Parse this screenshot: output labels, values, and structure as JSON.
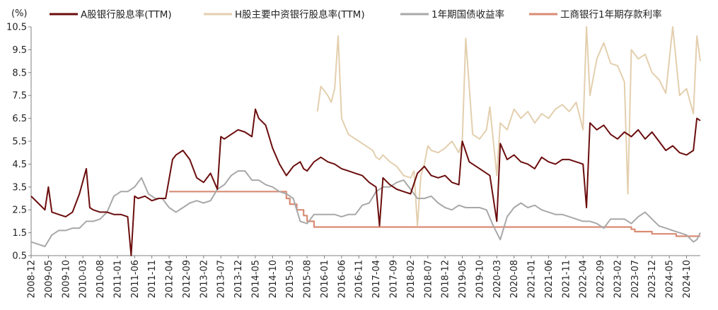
{
  "chart_data": {
    "type": "line",
    "ylabel": "(%)",
    "ylim": [
      0.5,
      10.5
    ],
    "yticks": [
      "0.5",
      "1.5",
      "2.5",
      "3.5",
      "4.5",
      "5.5",
      "6.5",
      "7.5",
      "8.5",
      "9.5",
      "10.5"
    ],
    "xticks": [
      "2008-12",
      "2009-05",
      "2009-10",
      "2010-03",
      "2010-08",
      "2011-01",
      "2011-06",
      "2011-11",
      "2012-04",
      "2012-09",
      "2013-02",
      "2013-07",
      "2013-12",
      "2014-05",
      "2014-10",
      "2015-03",
      "2015-08",
      "2016-01",
      "2016-06",
      "2016-11",
      "2017-04",
      "2017-09",
      "2018-02",
      "2018-07",
      "2018-12",
      "2019-05",
      "2019-10",
      "2020-03",
      "2020-08",
      "2021-01",
      "2021-06",
      "2021-11",
      "2022-04",
      "2022-09",
      "2023-02",
      "2023-07",
      "2023-12",
      "2024-05",
      "2024-10"
    ],
    "x_start": "2008-12",
    "x_end": "2025-02",
    "grid": false,
    "legend_position": "top",
    "series": [
      {
        "name": "A股银行股息率(TTM)",
        "color": "#6b0d0d",
        "x": [
          "2008-12",
          "2009-02",
          "2009-04",
          "2009-05",
          "2009-06",
          "2009-08",
          "2009-10",
          "2009-12",
          "2010-02",
          "2010-04",
          "2010-05",
          "2010-06",
          "2010-08",
          "2010-10",
          "2010-12",
          "2011-02",
          "2011-04",
          "2011-05",
          "2011-06",
          "2011-07",
          "2011-09",
          "2011-11",
          "2012-01",
          "2012-03",
          "2012-05",
          "2012-06",
          "2012-08",
          "2012-10",
          "2012-12",
          "2013-02",
          "2013-04",
          "2013-06",
          "2013-07",
          "2013-08",
          "2013-10",
          "2013-12",
          "2014-02",
          "2014-04",
          "2014-05",
          "2014-06",
          "2014-08",
          "2014-10",
          "2014-12",
          "2015-02",
          "2015-04",
          "2015-06",
          "2015-07",
          "2015-08",
          "2015-10",
          "2015-12",
          "2016-02",
          "2016-04",
          "2016-06",
          "2016-08",
          "2016-10",
          "2016-12",
          "2017-02",
          "2017-04",
          "2017-05",
          "2017-06",
          "2017-08",
          "2017-10",
          "2017-12",
          "2018-02",
          "2018-04",
          "2018-06",
          "2018-08",
          "2018-10",
          "2018-12",
          "2019-02",
          "2019-04",
          "2019-05",
          "2019-07",
          "2019-09",
          "2019-11",
          "2020-01",
          "2020-03",
          "2020-04",
          "2020-06",
          "2020-08",
          "2020-10",
          "2020-12",
          "2021-02",
          "2021-04",
          "2021-06",
          "2021-08",
          "2021-10",
          "2021-12",
          "2022-02",
          "2022-04",
          "2022-05",
          "2022-06",
          "2022-08",
          "2022-10",
          "2022-12",
          "2023-02",
          "2023-04",
          "2023-06",
          "2023-08",
          "2023-10",
          "2023-12",
          "2024-02",
          "2024-04",
          "2024-06",
          "2024-08",
          "2024-10",
          "2024-12",
          "2025-01",
          "2025-02"
        ],
        "values": [
          3.1,
          2.8,
          2.5,
          3.5,
          2.4,
          2.3,
          2.2,
          2.4,
          3.2,
          4.3,
          2.6,
          2.5,
          2.4,
          2.4,
          2.3,
          2.3,
          2.2,
          0.5,
          3.1,
          3.0,
          3.1,
          2.9,
          3.0,
          3.0,
          4.7,
          4.9,
          5.1,
          4.7,
          3.9,
          3.7,
          4.1,
          3.4,
          5.7,
          5.6,
          5.8,
          6.0,
          5.9,
          5.7,
          6.9,
          6.5,
          6.2,
          5.2,
          4.5,
          4.0,
          4.4,
          4.6,
          4.3,
          4.2,
          4.6,
          4.8,
          4.6,
          4.5,
          4.3,
          4.2,
          4.1,
          4.0,
          3.7,
          3.5,
          1.8,
          3.9,
          3.6,
          3.4,
          3.3,
          3.2,
          4.1,
          4.4,
          4.0,
          3.9,
          4.0,
          3.7,
          3.6,
          5.5,
          4.6,
          4.4,
          4.2,
          4.0,
          2.0,
          5.4,
          4.7,
          4.9,
          4.6,
          4.5,
          4.3,
          4.8,
          4.6,
          4.5,
          4.7,
          4.7,
          4.6,
          4.5,
          2.6,
          6.3,
          6.0,
          6.2,
          5.8,
          5.6,
          5.9,
          5.7,
          6.0,
          5.6,
          5.9,
          5.5,
          5.1,
          5.3,
          5.0,
          4.9,
          5.1,
          6.5,
          6.4
        ]
      },
      {
        "name": "H股主要中资银行股息率(TTM)",
        "color": "#e3cfae",
        "x": [
          "2015-11",
          "2015-12",
          "2016-02",
          "2016-03",
          "2016-04",
          "2016-05",
          "2016-06",
          "2016-08",
          "2016-10",
          "2016-12",
          "2017-02",
          "2017-03",
          "2017-04",
          "2017-05",
          "2017-06",
          "2017-08",
          "2017-10",
          "2017-12",
          "2018-02",
          "2018-03",
          "2018-04",
          "2018-05",
          "2018-06",
          "2018-07",
          "2018-08",
          "2018-10",
          "2018-12",
          "2019-02",
          "2019-04",
          "2019-05",
          "2019-06",
          "2019-08",
          "2019-10",
          "2019-12",
          "2020-01",
          "2020-03",
          "2020-04",
          "2020-06",
          "2020-08",
          "2020-10",
          "2020-12",
          "2021-02",
          "2021-04",
          "2021-06",
          "2021-08",
          "2021-10",
          "2021-12",
          "2022-02",
          "2022-04",
          "2022-05",
          "2022-06",
          "2022-08",
          "2022-10",
          "2022-12",
          "2023-02",
          "2023-04",
          "2023-05",
          "2023-06",
          "2023-08",
          "2023-10",
          "2023-12",
          "2024-02",
          "2024-04",
          "2024-06",
          "2024-08",
          "2024-10",
          "2024-12",
          "2025-01",
          "2025-02"
        ],
        "values": [
          6.8,
          7.9,
          7.5,
          7.2,
          7.8,
          10.1,
          6.5,
          5.8,
          5.6,
          5.4,
          5.2,
          5.1,
          4.8,
          4.7,
          4.9,
          4.6,
          4.4,
          4.0,
          3.9,
          4.2,
          1.8,
          4.0,
          4.5,
          5.3,
          5.1,
          5.0,
          5.2,
          5.5,
          5.0,
          5.5,
          10.0,
          5.8,
          5.6,
          6.0,
          7.0,
          4.0,
          6.3,
          6.0,
          6.9,
          6.5,
          6.8,
          6.3,
          6.7,
          6.5,
          6.9,
          7.1,
          6.8,
          7.2,
          6.0,
          10.5,
          7.5,
          9.1,
          9.8,
          8.9,
          8.8,
          8.1,
          3.2,
          9.5,
          9.1,
          9.3,
          8.5,
          8.2,
          7.6,
          10.5,
          7.5,
          7.8,
          6.7,
          10.1,
          9.0
        ]
      },
      {
        "name": "1年期国债收益率",
        "color": "#a8a8a8",
        "x": [
          "2008-12",
          "2009-02",
          "2009-04",
          "2009-06",
          "2009-08",
          "2009-10",
          "2009-12",
          "2010-02",
          "2010-04",
          "2010-06",
          "2010-08",
          "2010-10",
          "2010-12",
          "2011-02",
          "2011-04",
          "2011-06",
          "2011-08",
          "2011-10",
          "2011-12",
          "2012-02",
          "2012-04",
          "2012-06",
          "2012-08",
          "2012-10",
          "2012-12",
          "2013-02",
          "2013-04",
          "2013-06",
          "2013-08",
          "2013-10",
          "2013-12",
          "2014-02",
          "2014-04",
          "2014-06",
          "2014-08",
          "2014-10",
          "2014-12",
          "2015-02",
          "2015-04",
          "2015-06",
          "2015-08",
          "2015-10",
          "2015-12",
          "2016-02",
          "2016-04",
          "2016-06",
          "2016-08",
          "2016-10",
          "2016-12",
          "2017-02",
          "2017-04",
          "2017-06",
          "2017-08",
          "2017-10",
          "2017-12",
          "2018-02",
          "2018-04",
          "2018-06",
          "2018-08",
          "2018-10",
          "2018-12",
          "2019-02",
          "2019-04",
          "2019-06",
          "2019-08",
          "2019-10",
          "2019-12",
          "2020-02",
          "2020-04",
          "2020-06",
          "2020-08",
          "2020-10",
          "2020-12",
          "2021-02",
          "2021-04",
          "2021-06",
          "2021-08",
          "2021-10",
          "2021-12",
          "2022-02",
          "2022-04",
          "2022-06",
          "2022-08",
          "2022-10",
          "2022-12",
          "2023-02",
          "2023-04",
          "2023-06",
          "2023-08",
          "2023-10",
          "2023-12",
          "2024-02",
          "2024-04",
          "2024-06",
          "2024-08",
          "2024-10",
          "2024-12",
          "2025-01",
          "2025-02"
        ],
        "values": [
          1.1,
          1.0,
          0.9,
          1.4,
          1.6,
          1.6,
          1.7,
          1.7,
          2.0,
          2.0,
          2.1,
          2.4,
          3.1,
          3.3,
          3.3,
          3.5,
          3.9,
          3.2,
          3.0,
          3.0,
          2.6,
          2.4,
          2.6,
          2.8,
          2.9,
          2.8,
          2.9,
          3.4,
          3.6,
          4.0,
          4.2,
          4.2,
          3.8,
          3.8,
          3.6,
          3.5,
          3.3,
          3.2,
          3.0,
          2.0,
          1.9,
          2.3,
          2.3,
          2.3,
          2.3,
          2.2,
          2.3,
          2.3,
          2.7,
          2.8,
          3.3,
          3.5,
          3.5,
          3.7,
          3.8,
          3.4,
          3.0,
          3.0,
          3.1,
          2.8,
          2.6,
          2.5,
          2.7,
          2.6,
          2.6,
          2.6,
          2.5,
          1.8,
          1.2,
          2.2,
          2.6,
          2.8,
          2.6,
          2.7,
          2.5,
          2.4,
          2.3,
          2.3,
          2.2,
          2.1,
          2.0,
          2.0,
          1.9,
          1.7,
          2.1,
          2.1,
          2.1,
          1.9,
          2.2,
          2.4,
          2.1,
          1.8,
          1.7,
          1.6,
          1.5,
          1.4,
          1.1,
          1.2,
          1.5
        ]
      },
      {
        "name": "工商银行1年期存款利率",
        "color": "#d98b73",
        "x": [
          "2012-04",
          "2012-06",
          "2014-11",
          "2015-02",
          "2015-03",
          "2015-05",
          "2015-07",
          "2015-08",
          "2015-10",
          "2022-09",
          "2023-06",
          "2023-07",
          "2023-12",
          "2024-07",
          "2025-02"
        ],
        "values": [
          3.3,
          3.3,
          3.3,
          3.0,
          2.75,
          2.5,
          2.25,
          2.0,
          1.75,
          1.75,
          1.65,
          1.55,
          1.45,
          1.35,
          1.35
        ]
      }
    ]
  }
}
